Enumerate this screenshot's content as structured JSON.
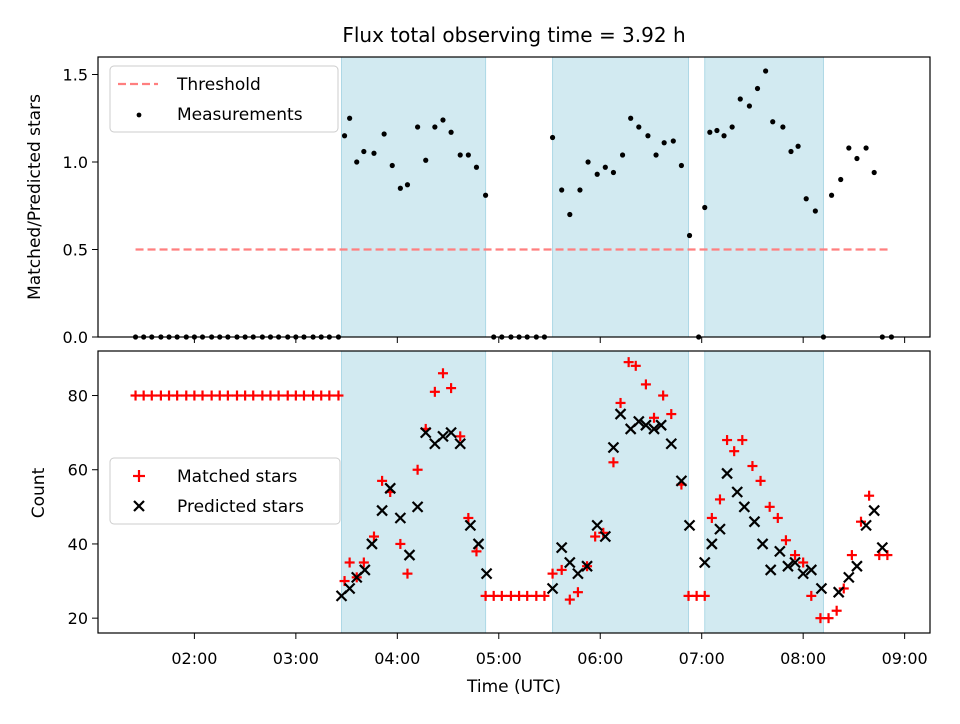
{
  "title": "Flux total observing time = 3.92 h",
  "x_axis": {
    "label": "Time (UTC)",
    "ticks": [
      "02:00",
      "03:00",
      "04:00",
      "05:00",
      "06:00",
      "07:00",
      "08:00",
      "09:00"
    ],
    "tick_hours": [
      2,
      3,
      4,
      5,
      6,
      7,
      8,
      9
    ],
    "range_hours": [
      1.05,
      9.25
    ]
  },
  "shaded_intervals_hours": [
    [
      3.45,
      4.87
    ],
    [
      5.53,
      6.87
    ],
    [
      7.03,
      8.2
    ]
  ],
  "colors": {
    "shade": "#add8e6",
    "threshold": "#ff7f7f",
    "measurements": "#000000",
    "matched": "#ff0000",
    "predicted": "#000000"
  },
  "chart_data": [
    {
      "type": "scatter",
      "title": "Flux total observing time = 3.92 h",
      "xlabel": "",
      "ylabel": "Matched/Predicted stars",
      "ylim": [
        0.0,
        1.6
      ],
      "yticks": [
        "0.0",
        "0.5",
        "1.0",
        "1.5"
      ],
      "ytick_values": [
        0.0,
        0.5,
        1.0,
        1.5
      ],
      "legend": {
        "placement": "top-left",
        "entries": [
          "Threshold",
          "Measurements"
        ]
      },
      "series": [
        {
          "name": "Threshold",
          "style": "dashed-line",
          "x_hours": [
            1.42,
            8.87
          ],
          "values": [
            0.5,
            0.5
          ]
        },
        {
          "name": "Measurements",
          "style": "dot",
          "x_hours": [
            1.42,
            1.5,
            1.58,
            1.67,
            1.75,
            1.83,
            1.92,
            2.0,
            2.08,
            2.17,
            2.25,
            2.33,
            2.42,
            2.5,
            2.58,
            2.67,
            2.75,
            2.83,
            2.92,
            3.0,
            3.08,
            3.17,
            3.25,
            3.33,
            3.42,
            3.48,
            3.53,
            3.6,
            3.67,
            3.77,
            3.87,
            3.95,
            4.03,
            4.1,
            4.2,
            4.28,
            4.37,
            4.45,
            4.53,
            4.62,
            4.7,
            4.78,
            4.87,
            4.95,
            5.03,
            5.12,
            5.2,
            5.28,
            5.37,
            5.45,
            5.53,
            5.62,
            5.7,
            5.8,
            5.88,
            5.97,
            6.05,
            6.13,
            6.22,
            6.3,
            6.38,
            6.47,
            6.55,
            6.63,
            6.72,
            6.8,
            6.88,
            6.97,
            7.03,
            7.08,
            7.15,
            7.22,
            7.3,
            7.38,
            7.47,
            7.55,
            7.63,
            7.7,
            7.8,
            7.88,
            7.95,
            8.03,
            8.12,
            8.2,
            8.28,
            8.37,
            8.45,
            8.53,
            8.62,
            8.7,
            8.78,
            8.87
          ],
          "values": [
            0,
            0,
            0,
            0,
            0,
            0,
            0,
            0,
            0,
            0,
            0,
            0,
            0,
            0,
            0,
            0,
            0,
            0,
            0,
            0,
            0,
            0,
            0,
            0,
            0,
            1.15,
            1.25,
            1.0,
            1.06,
            1.05,
            1.16,
            0.98,
            0.85,
            0.87,
            1.2,
            1.01,
            1.2,
            1.24,
            1.17,
            1.04,
            1.04,
            0.97,
            0.81,
            0,
            0,
            0,
            0,
            0,
            0,
            0,
            1.14,
            0.84,
            0.7,
            0.84,
            1.0,
            0.93,
            0.97,
            0.94,
            1.04,
            1.25,
            1.2,
            1.15,
            1.04,
            1.11,
            1.12,
            0.98,
            0.58,
            0,
            0.74,
            1.17,
            1.18,
            1.15,
            1.2,
            1.36,
            1.32,
            1.42,
            1.52,
            1.23,
            1.2,
            1.06,
            1.09,
            0.79,
            0.72,
            0,
            0.81,
            0.9,
            1.08,
            1.02,
            1.08,
            0.94,
            0,
            0
          ]
        }
      ]
    },
    {
      "type": "scatter",
      "xlabel": "Time (UTC)",
      "ylabel": "Count",
      "ylim": [
        16,
        92
      ],
      "yticks": [
        "20",
        "40",
        "60",
        "80"
      ],
      "ytick_values": [
        20,
        40,
        60,
        80
      ],
      "legend": {
        "placement": "center-left",
        "entries": [
          "Matched stars",
          "Predicted stars"
        ]
      },
      "series": [
        {
          "name": "Matched stars",
          "style": "plus",
          "x_hours": [
            1.42,
            1.5,
            1.58,
            1.67,
            1.75,
            1.83,
            1.92,
            2.0,
            2.08,
            2.17,
            2.25,
            2.33,
            2.42,
            2.5,
            2.58,
            2.67,
            2.75,
            2.83,
            2.92,
            3.0,
            3.08,
            3.17,
            3.25,
            3.33,
            3.42,
            3.48,
            3.53,
            3.6,
            3.67,
            3.77,
            3.85,
            3.93,
            4.03,
            4.1,
            4.2,
            4.28,
            4.37,
            4.45,
            4.53,
            4.62,
            4.7,
            4.78,
            4.87,
            4.95,
            5.03,
            5.12,
            5.2,
            5.28,
            5.37,
            5.45,
            5.53,
            5.62,
            5.7,
            5.78,
            5.87,
            5.95,
            6.03,
            6.13,
            6.2,
            6.28,
            6.35,
            6.45,
            6.53,
            6.62,
            6.7,
            6.8,
            6.87,
            6.95,
            7.03,
            7.1,
            7.18,
            7.25,
            7.32,
            7.4,
            7.5,
            7.58,
            7.67,
            7.75,
            7.83,
            7.92,
            8.0,
            8.08,
            8.17,
            8.25,
            8.33,
            8.4,
            8.48,
            8.57,
            8.65,
            8.75,
            8.83
          ],
          "values": [
            80,
            80,
            80,
            80,
            80,
            80,
            80,
            80,
            80,
            80,
            80,
            80,
            80,
            80,
            80,
            80,
            80,
            80,
            80,
            80,
            80,
            80,
            80,
            80,
            80,
            30,
            35,
            31,
            35,
            42,
            57,
            54,
            40,
            32,
            60,
            71,
            81,
            86,
            82,
            69,
            47,
            38,
            26,
            26,
            26,
            26,
            26,
            26,
            26,
            26,
            32,
            33,
            25,
            27,
            34,
            42,
            43,
            62,
            78,
            89,
            88,
            83,
            74,
            80,
            75,
            56,
            26,
            26,
            26,
            47,
            52,
            68,
            65,
            68,
            61,
            57,
            50,
            47,
            41,
            37,
            35,
            26,
            20,
            20,
            22,
            28,
            37,
            46,
            53,
            37,
            37
          ]
        },
        {
          "name": "Predicted stars",
          "style": "x",
          "x_hours": [
            3.45,
            3.53,
            3.6,
            3.68,
            3.75,
            3.85,
            3.93,
            4.03,
            4.12,
            4.2,
            4.28,
            4.37,
            4.45,
            4.53,
            4.62,
            4.72,
            4.8,
            4.88,
            5.53,
            5.62,
            5.7,
            5.78,
            5.87,
            5.97,
            6.05,
            6.13,
            6.2,
            6.3,
            6.38,
            6.45,
            6.53,
            6.6,
            6.7,
            6.8,
            6.88,
            7.03,
            7.1,
            7.18,
            7.25,
            7.35,
            7.42,
            7.52,
            7.6,
            7.68,
            7.77,
            7.85,
            7.92,
            8.0,
            8.08,
            8.18,
            8.35,
            8.45,
            8.53,
            8.62,
            8.7,
            8.78
          ],
          "values": [
            26,
            28,
            31,
            33,
            40,
            49,
            55,
            47,
            37,
            50,
            70,
            67,
            69,
            70,
            67,
            45,
            40,
            32,
            28,
            39,
            35,
            32,
            34,
            45,
            42,
            66,
            75,
            71,
            73,
            72,
            71,
            72,
            67,
            57,
            45,
            35,
            40,
            44,
            59,
            54,
            50,
            46,
            40,
            33,
            38,
            34,
            35,
            32,
            33,
            28,
            27,
            31,
            34,
            45,
            49,
            39
          ]
        }
      ]
    }
  ]
}
